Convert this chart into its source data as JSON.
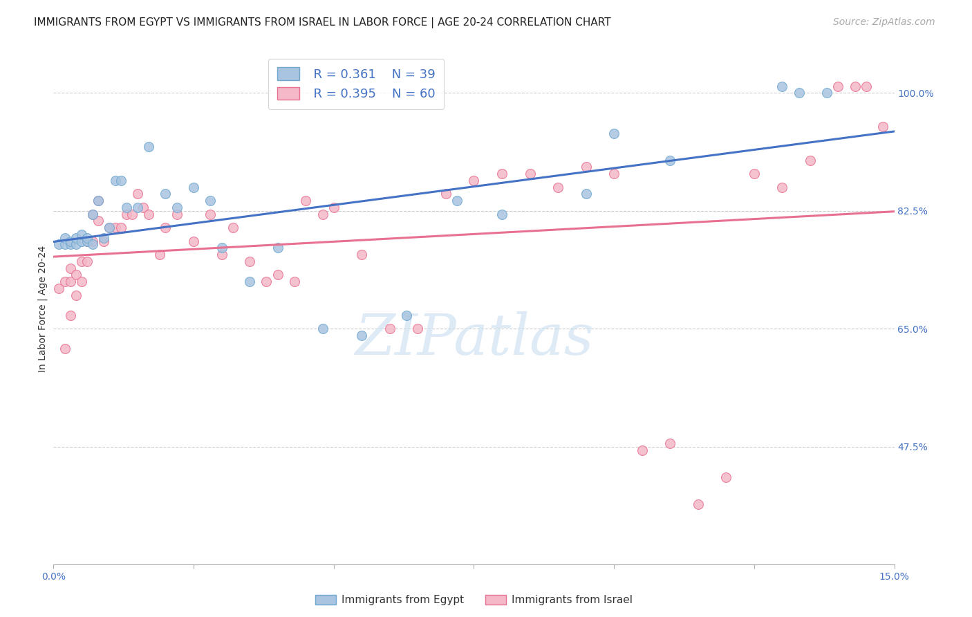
{
  "title": "IMMIGRANTS FROM EGYPT VS IMMIGRANTS FROM ISRAEL IN LABOR FORCE | AGE 20-24 CORRELATION CHART",
  "source": "Source: ZipAtlas.com",
  "ylabel": "In Labor Force | Age 20-24",
  "xlim": [
    0.0,
    0.15
  ],
  "ylim": [
    0.3,
    1.06
  ],
  "xticks": [
    0.0,
    0.025,
    0.05,
    0.075,
    0.1,
    0.125,
    0.15
  ],
  "xticklabels": [
    "0.0%",
    "",
    "",
    "",
    "",
    "",
    "15.0%"
  ],
  "yticks_right": [
    0.475,
    0.65,
    0.825,
    1.0
  ],
  "ytick_labels_right": [
    "47.5%",
    "65.0%",
    "82.5%",
    "100.0%"
  ],
  "egypt_color": "#a8c4e0",
  "egypt_edge": "#6fa8d0",
  "israel_color": "#f4b8c8",
  "israel_edge": "#e87090",
  "egypt_line_color": "#4472c4",
  "israel_line_color": "#e87090",
  "egypt_R": 0.361,
  "egypt_N": 39,
  "israel_R": 0.395,
  "israel_N": 60,
  "egypt_x": [
    0.001,
    0.002,
    0.002,
    0.003,
    0.003,
    0.004,
    0.004,
    0.005,
    0.005,
    0.006,
    0.006,
    0.007,
    0.007,
    0.008,
    0.009,
    0.01,
    0.011,
    0.012,
    0.013,
    0.015,
    0.017,
    0.02,
    0.022,
    0.025,
    0.028,
    0.03,
    0.035,
    0.04,
    0.048,
    0.055,
    0.063,
    0.072,
    0.08,
    0.095,
    0.1,
    0.11,
    0.13,
    0.133,
    0.138
  ],
  "egypt_y": [
    0.775,
    0.775,
    0.785,
    0.775,
    0.78,
    0.775,
    0.785,
    0.78,
    0.79,
    0.78,
    0.785,
    0.775,
    0.82,
    0.84,
    0.785,
    0.8,
    0.87,
    0.87,
    0.83,
    0.83,
    0.92,
    0.85,
    0.83,
    0.86,
    0.84,
    0.77,
    0.72,
    0.77,
    0.65,
    0.64,
    0.67,
    0.84,
    0.82,
    0.85,
    0.94,
    0.9,
    1.01,
    1.0,
    1.0
  ],
  "israel_x": [
    0.001,
    0.002,
    0.002,
    0.003,
    0.003,
    0.003,
    0.004,
    0.004,
    0.005,
    0.005,
    0.006,
    0.006,
    0.007,
    0.007,
    0.008,
    0.008,
    0.009,
    0.01,
    0.011,
    0.012,
    0.013,
    0.014,
    0.015,
    0.016,
    0.017,
    0.019,
    0.02,
    0.022,
    0.025,
    0.028,
    0.03,
    0.032,
    0.035,
    0.038,
    0.04,
    0.043,
    0.045,
    0.048,
    0.05,
    0.055,
    0.06,
    0.065,
    0.07,
    0.075,
    0.08,
    0.085,
    0.09,
    0.095,
    0.1,
    0.105,
    0.11,
    0.115,
    0.12,
    0.125,
    0.13,
    0.135,
    0.14,
    0.143,
    0.145,
    0.148
  ],
  "israel_y": [
    0.71,
    0.72,
    0.62,
    0.72,
    0.67,
    0.74,
    0.7,
    0.73,
    0.72,
    0.75,
    0.75,
    0.78,
    0.78,
    0.82,
    0.81,
    0.84,
    0.78,
    0.8,
    0.8,
    0.8,
    0.82,
    0.82,
    0.85,
    0.83,
    0.82,
    0.76,
    0.8,
    0.82,
    0.78,
    0.82,
    0.76,
    0.8,
    0.75,
    0.72,
    0.73,
    0.72,
    0.84,
    0.82,
    0.83,
    0.76,
    0.65,
    0.65,
    0.85,
    0.87,
    0.88,
    0.88,
    0.86,
    0.89,
    0.88,
    0.47,
    0.48,
    0.39,
    0.43,
    0.88,
    0.86,
    0.9,
    1.01,
    1.01,
    1.01,
    0.95
  ],
  "watermark_text": "ZIPatlas",
  "watermark_color": "#c8dff0",
  "title_fontsize": 11,
  "label_fontsize": 10,
  "tick_fontsize": 10,
  "legend_fontsize": 13,
  "source_fontsize": 10,
  "marker_size": 100,
  "background_color": "#ffffff",
  "grid_color": "#cccccc"
}
